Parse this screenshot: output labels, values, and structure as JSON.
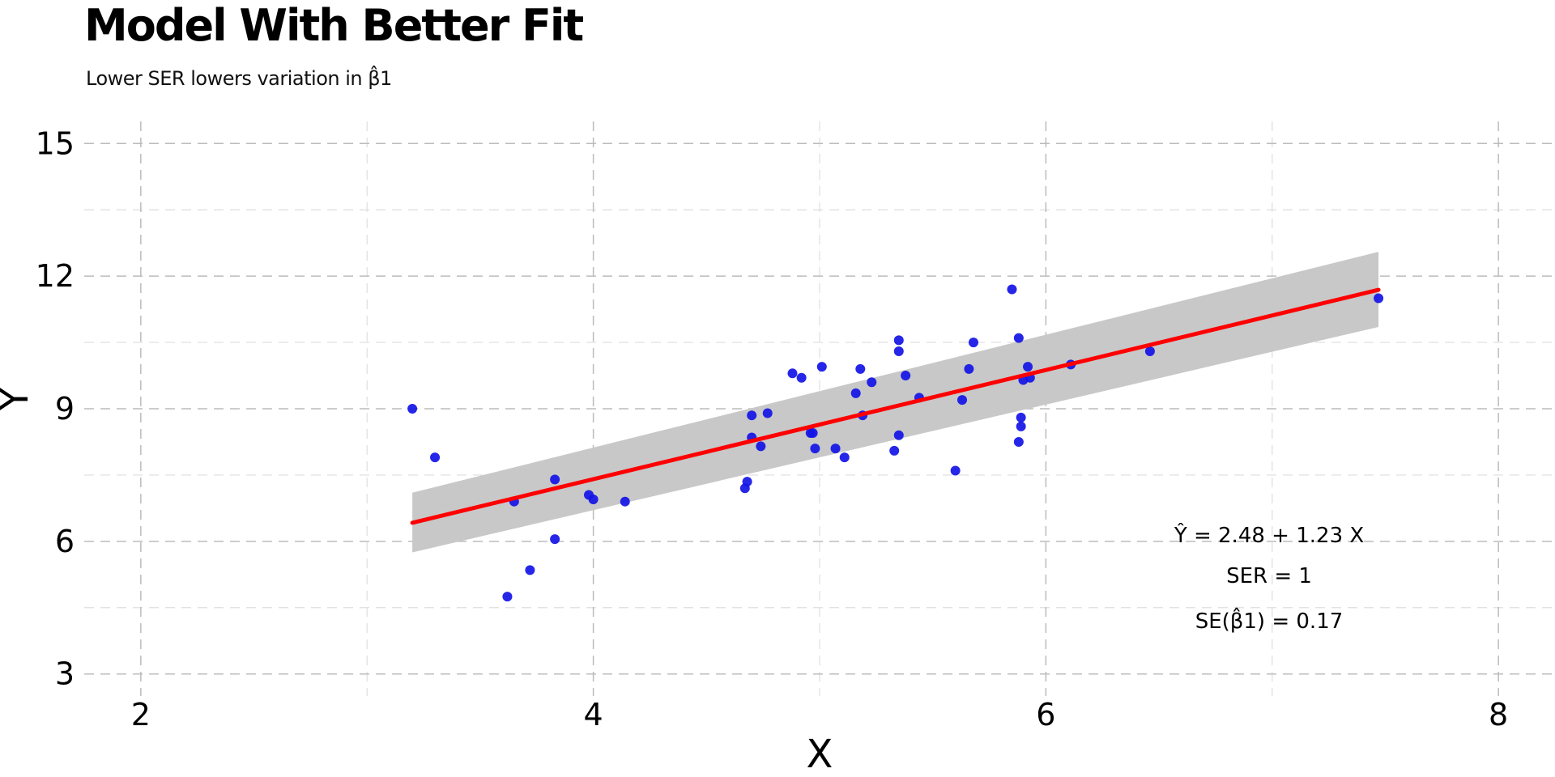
{
  "chart_data": {
    "type": "scatter",
    "title": "Model With Better Fit",
    "subtitle": "Lower SER lowers variation in β̂1",
    "xlabel": "X",
    "ylabel": "Y",
    "xlim": [
      1.75,
      8.25
    ],
    "ylim": [
      2.5,
      15.5
    ],
    "x_ticks": [
      2,
      4,
      6,
      8
    ],
    "y_ticks": [
      3,
      6,
      9,
      12,
      15
    ],
    "grid": true,
    "point_color": "#1414e6",
    "line_color": "#ff0000",
    "band_color": "#c8c8c8",
    "points": [
      {
        "x": 3.2,
        "y": 9.0
      },
      {
        "x": 3.3,
        "y": 7.9
      },
      {
        "x": 3.62,
        "y": 4.75
      },
      {
        "x": 3.65,
        "y": 6.9
      },
      {
        "x": 3.72,
        "y": 5.35
      },
      {
        "x": 3.83,
        "y": 6.05
      },
      {
        "x": 3.83,
        "y": 7.4
      },
      {
        "x": 3.98,
        "y": 7.05
      },
      {
        "x": 4.0,
        "y": 6.95
      },
      {
        "x": 4.14,
        "y": 6.9
      },
      {
        "x": 4.67,
        "y": 7.2
      },
      {
        "x": 4.68,
        "y": 7.35
      },
      {
        "x": 4.7,
        "y": 8.85
      },
      {
        "x": 4.7,
        "y": 8.35
      },
      {
        "x": 4.74,
        "y": 8.15
      },
      {
        "x": 4.77,
        "y": 8.9
      },
      {
        "x": 4.88,
        "y": 9.8
      },
      {
        "x": 4.92,
        "y": 9.7
      },
      {
        "x": 4.96,
        "y": 8.45
      },
      {
        "x": 4.97,
        "y": 8.45
      },
      {
        "x": 4.98,
        "y": 8.1
      },
      {
        "x": 5.01,
        "y": 9.95
      },
      {
        "x": 5.07,
        "y": 8.1
      },
      {
        "x": 5.11,
        "y": 7.9
      },
      {
        "x": 5.16,
        "y": 9.35
      },
      {
        "x": 5.18,
        "y": 9.9
      },
      {
        "x": 5.19,
        "y": 8.85
      },
      {
        "x": 5.23,
        "y": 9.6
      },
      {
        "x": 5.33,
        "y": 8.05
      },
      {
        "x": 5.35,
        "y": 10.55
      },
      {
        "x": 5.35,
        "y": 10.3
      },
      {
        "x": 5.35,
        "y": 8.4
      },
      {
        "x": 5.38,
        "y": 9.75
      },
      {
        "x": 5.44,
        "y": 9.25
      },
      {
        "x": 5.6,
        "y": 7.6
      },
      {
        "x": 5.63,
        "y": 9.2
      },
      {
        "x": 5.66,
        "y": 9.9
      },
      {
        "x": 5.68,
        "y": 10.5
      },
      {
        "x": 5.85,
        "y": 11.7
      },
      {
        "x": 5.88,
        "y": 10.6
      },
      {
        "x": 5.88,
        "y": 8.25
      },
      {
        "x": 5.89,
        "y": 8.8
      },
      {
        "x": 5.89,
        "y": 8.6
      },
      {
        "x": 5.9,
        "y": 9.65
      },
      {
        "x": 5.92,
        "y": 9.95
      },
      {
        "x": 5.93,
        "y": 9.7
      },
      {
        "x": 6.11,
        "y": 10.0
      },
      {
        "x": 6.46,
        "y": 10.3
      },
      {
        "x": 7.47,
        "y": 11.5
      }
    ],
    "fit": {
      "x": [
        3.2,
        7.47
      ],
      "y": [
        6.42,
        11.69
      ],
      "band_upper": [
        7.1,
        12.55
      ],
      "band_lower": [
        5.75,
        10.85
      ]
    },
    "annotations": {
      "equation": "Ŷ = 2.48 + 1.23 X",
      "ser": "SER = 1",
      "se": "SE(β̂1) = 0.17"
    }
  }
}
